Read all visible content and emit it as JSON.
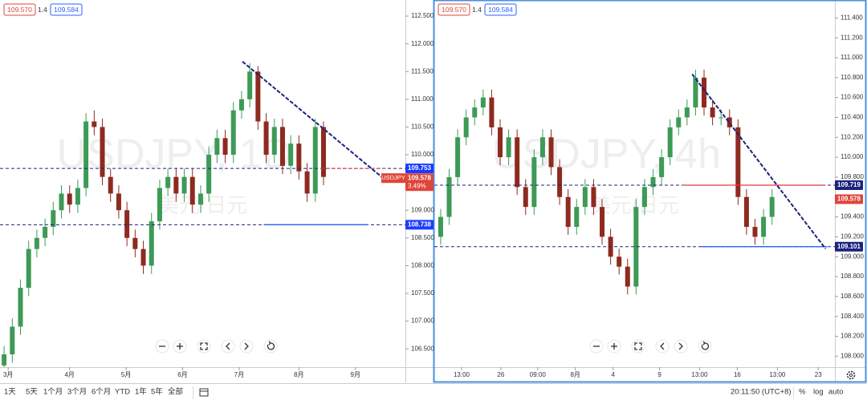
{
  "chart_data": [
    {
      "type": "candlestick",
      "title": "USDJPY, 1D",
      "subtitle": "美元/日元",
      "quote": {
        "bid": "109.570",
        "spread": "1.4",
        "ask": "109.584"
      },
      "up_color": "#3d9a57",
      "down_color": "#8e2a1f",
      "open": [
        106.2,
        106.4,
        106.9,
        107.6,
        108.3,
        108.5,
        108.7,
        109.0,
        109.3,
        109.1,
        109.4,
        110.6,
        110.5,
        109.6,
        109.3,
        109.0,
        108.5,
        108.3,
        108.0,
        108.8,
        109.4,
        109.6,
        109.3,
        109.6,
        109.1,
        109.3,
        110.0,
        110.3,
        110.0,
        110.8,
        111.0,
        111.5,
        110.6,
        110.0,
        110.5,
        109.8,
        110.2,
        109.7,
        109.3,
        110.5
      ],
      "high": [
        106.55,
        107.05,
        107.75,
        108.45,
        108.65,
        108.85,
        109.15,
        109.45,
        109.45,
        109.55,
        110.75,
        110.8,
        110.65,
        109.75,
        109.45,
        109.15,
        108.65,
        108.45,
        108.95,
        109.55,
        109.75,
        109.75,
        109.75,
        109.75,
        109.45,
        110.15,
        110.45,
        110.45,
        110.95,
        111.15,
        111.65,
        111.6,
        110.75,
        110.65,
        110.65,
        110.35,
        110.35,
        109.85,
        110.65,
        110.6
      ],
      "low": [
        106.05,
        106.25,
        106.75,
        107.45,
        108.15,
        108.35,
        108.55,
        108.85,
        108.95,
        108.95,
        109.25,
        110.35,
        109.45,
        109.15,
        108.85,
        108.35,
        108.15,
        107.85,
        107.85,
        108.65,
        109.25,
        109.15,
        109.15,
        108.95,
        108.95,
        109.15,
        109.85,
        109.85,
        109.85,
        110.65,
        110.85,
        110.45,
        109.85,
        109.85,
        109.65,
        109.65,
        109.55,
        109.15,
        109.15,
        109.45
      ],
      "close": [
        106.4,
        106.9,
        107.6,
        108.3,
        108.5,
        108.7,
        109.0,
        109.3,
        109.1,
        109.4,
        110.6,
        110.5,
        109.6,
        109.3,
        109.0,
        108.5,
        108.3,
        108.0,
        108.8,
        109.4,
        109.6,
        109.3,
        109.6,
        109.1,
        109.3,
        110.0,
        110.3,
        110.0,
        110.8,
        111.0,
        111.5,
        110.6,
        110.0,
        110.5,
        109.8,
        110.2,
        109.7,
        109.3,
        110.5,
        109.6
      ],
      "xlim": [
        -0.5,
        49
      ],
      "xticks": [
        {
          "value": 0.5,
          "label": "3月"
        },
        {
          "value": 8,
          "label": "4月"
        },
        {
          "value": 14.9,
          "label": "5月"
        },
        {
          "value": 21.8,
          "label": "6月"
        },
        {
          "value": 28.7,
          "label": "7月"
        },
        {
          "value": 36,
          "label": "8月"
        },
        {
          "value": 42.9,
          "label": "9月"
        }
      ],
      "ylim": [
        106.17,
        112.79
      ],
      "yticks": [
        {
          "value": 106.5,
          "label": "106.500"
        },
        {
          "value": 107,
          "label": "107.000"
        },
        {
          "value": 107.5,
          "label": "107.500"
        },
        {
          "value": 108,
          "label": "108.000"
        },
        {
          "value": 108.5,
          "label": "108.500"
        },
        {
          "value": 109,
          "label": "109.000"
        },
        {
          "value": 110,
          "label": "110.000"
        },
        {
          "value": 110.5,
          "label": "110.500"
        },
        {
          "value": 111,
          "label": "111.000"
        },
        {
          "value": 111.5,
          "label": "111.500"
        },
        {
          "value": 112,
          "label": "112.000"
        },
        {
          "value": 112.5,
          "label": "112.500"
        }
      ],
      "levels": [
        {
          "value": 109.753,
          "style": "dashed",
          "color": "#1a237e"
        },
        {
          "value": 108.738,
          "style": "dashed",
          "color": "#1a237e"
        },
        {
          "value": 109.753,
          "style": "dashed",
          "color": "#e53935",
          "from": 38.7,
          "to": 46.6
        },
        {
          "value": 108.738,
          "style": "solid",
          "color": "#2962ff",
          "from": 31.7,
          "to": 44.4
        }
      ],
      "trendlines": [
        {
          "from": [
            29.1,
            111.68
          ],
          "to": [
            46.75,
            109.52
          ],
          "color": "#1a237e"
        }
      ],
      "price_tags": [
        {
          "value": 109.753,
          "label": "109.753",
          "color": "#1a3cff"
        },
        {
          "value": 109.578,
          "label": "109.578",
          "color": "#e0453a",
          "symbol": "USDJPY",
          "change": "3.49%"
        },
        {
          "value": 108.738,
          "label": "108.738",
          "color": "#1a3cff"
        }
      ]
    },
    {
      "type": "candlestick",
      "title": "USDJPY, 4h",
      "subtitle": "美元/日元",
      "quote": {
        "bid": "109.570",
        "spread": "1.4",
        "ask": "109.584"
      },
      "up_color": "#3d9a57",
      "down_color": "#8e2a1f",
      "open": [
        109.2,
        109.4,
        109.8,
        110.2,
        110.4,
        110.5,
        110.6,
        110.3,
        110.0,
        110.2,
        109.7,
        109.5,
        110.0,
        110.2,
        109.9,
        109.6,
        109.3,
        109.5,
        109.7,
        109.5,
        109.2,
        109.0,
        108.9,
        108.7,
        109.5,
        109.7,
        109.8,
        110.0,
        110.3,
        110.4,
        110.5,
        110.8,
        110.5,
        110.4,
        110.4,
        110.3,
        109.6,
        109.3,
        109.2,
        109.4
      ],
      "high": [
        109.48,
        109.88,
        110.28,
        110.48,
        110.58,
        110.68,
        110.68,
        110.38,
        110.28,
        110.28,
        109.78,
        110.08,
        110.28,
        110.28,
        109.98,
        109.68,
        109.58,
        109.78,
        109.78,
        109.58,
        109.28,
        109.08,
        108.98,
        109.58,
        109.78,
        109.88,
        110.08,
        110.38,
        110.48,
        110.58,
        110.88,
        110.88,
        110.58,
        110.48,
        110.48,
        110.38,
        109.68,
        109.38,
        109.48,
        109.68
      ],
      "low": [
        109.12,
        109.32,
        109.72,
        110.12,
        110.32,
        110.42,
        110.22,
        109.92,
        109.92,
        109.62,
        109.42,
        109.42,
        109.92,
        109.82,
        109.52,
        109.22,
        109.22,
        109.42,
        109.42,
        109.12,
        108.92,
        108.82,
        108.62,
        108.62,
        109.42,
        109.62,
        109.72,
        109.92,
        110.22,
        110.32,
        110.42,
        110.42,
        110.32,
        110.32,
        110.22,
        109.52,
        109.22,
        109.12,
        109.12,
        109.32
      ],
      "close": [
        109.4,
        109.8,
        110.2,
        110.4,
        110.5,
        110.6,
        110.3,
        110.0,
        110.2,
        109.7,
        109.5,
        110.0,
        110.2,
        109.9,
        109.6,
        109.3,
        109.5,
        109.7,
        109.5,
        109.2,
        109.0,
        108.9,
        108.7,
        109.5,
        109.7,
        109.8,
        110.0,
        110.3,
        110.4,
        110.5,
        110.8,
        110.5,
        110.4,
        110.4,
        110.3,
        109.6,
        109.3,
        109.2,
        109.4,
        109.6
      ],
      "xlim": [
        -0.75,
        46.4
      ],
      "xticks": [
        {
          "value": 2.46,
          "label": "13:00"
        },
        {
          "value": 7.08,
          "label": "26"
        },
        {
          "value": 11.42,
          "label": "09:00"
        },
        {
          "value": 15.85,
          "label": "8月"
        },
        {
          "value": 20.29,
          "label": "4"
        },
        {
          "value": 25.76,
          "label": "9"
        },
        {
          "value": 30.47,
          "label": "13:00"
        },
        {
          "value": 34.91,
          "label": "16"
        },
        {
          "value": 39.63,
          "label": "13:00"
        },
        {
          "value": 44.44,
          "label": "23"
        }
      ],
      "ylim": [
        107.89,
        111.58
      ],
      "yticks": [
        {
          "value": 108,
          "label": "108.000"
        },
        {
          "value": 108.2,
          "label": "108.200"
        },
        {
          "value": 108.4,
          "label": "108.400"
        },
        {
          "value": 108.6,
          "label": "108.600"
        },
        {
          "value": 108.8,
          "label": "108.800"
        },
        {
          "value": 109,
          "label": "109.000"
        },
        {
          "value": 109.2,
          "label": "109.200"
        },
        {
          "value": 109.4,
          "label": "109.400"
        },
        {
          "value": 109.8,
          "label": "109.800"
        },
        {
          "value": 110,
          "label": "110.000"
        },
        {
          "value": 110.2,
          "label": "110.200"
        },
        {
          "value": 110.4,
          "label": "110.400"
        },
        {
          "value": 110.6,
          "label": "110.600"
        },
        {
          "value": 110.8,
          "label": "110.800"
        },
        {
          "value": 111,
          "label": "111.000"
        },
        {
          "value": 111.2,
          "label": "111.200"
        },
        {
          "value": 111.4,
          "label": "111.400"
        }
      ],
      "levels": [
        {
          "value": 109.719,
          "style": "dashed",
          "color": "#1a237e"
        },
        {
          "value": 109.101,
          "style": "dashed",
          "color": "#1a237e"
        },
        {
          "value": 109.719,
          "style": "solid",
          "color": "#e53935",
          "from": 28.5,
          "to": 45.3
        },
        {
          "value": 109.101,
          "style": "solid",
          "color": "#2962ff",
          "from": 30.7,
          "to": 45.5
        }
      ],
      "trendlines": [
        {
          "from": [
            29.6,
            110.835
          ],
          "to": [
            45.3,
            109.08
          ],
          "color": "#1a237e"
        }
      ],
      "price_tags": [
        {
          "value": 109.719,
          "label": "109.719",
          "color": "#1a237e"
        },
        {
          "value": 109.578,
          "label": "109.578",
          "color": "#e0453a"
        },
        {
          "value": 109.101,
          "label": "109.101",
          "color": "#1a237e"
        }
      ]
    }
  ],
  "toolbar": {
    "ranges": [
      "1天",
      "5天",
      "1个月",
      "3个月",
      "6个月",
      "YTD",
      "1年",
      "5年",
      "全部"
    ],
    "clock": "20:11:50 (UTC+8)",
    "options": [
      "%",
      "log",
      "auto"
    ]
  }
}
